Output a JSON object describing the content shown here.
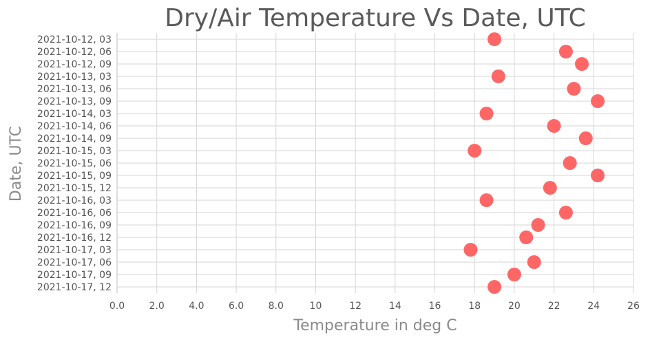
{
  "chart_data": {
    "type": "scatter",
    "title": "Dry/Air Temperature Vs Date, UTC",
    "xlabel": "Temperature in deg C",
    "ylabel": "Date, UTC",
    "xlim": [
      0,
      26
    ],
    "x_ticks": [
      "0.0",
      "2.0",
      "4.0",
      "6.0",
      "8.0",
      "10",
      "12",
      "14",
      "16",
      "18",
      "20",
      "22",
      "24",
      "26"
    ],
    "grid": true,
    "marker_color": "#ff5a5a",
    "categories": [
      "2021-10-12, 03",
      "2021-10-12, 06",
      "2021-10-12, 09",
      "2021-10-13, 03",
      "2021-10-13, 06",
      "2021-10-13, 09",
      "2021-10-14, 03",
      "2021-10-14, 06",
      "2021-10-14, 09",
      "2021-10-15, 03",
      "2021-10-15, 06",
      "2021-10-15, 09",
      "2021-10-15, 12",
      "2021-10-16, 03",
      "2021-10-16, 06",
      "2021-10-16, 09",
      "2021-10-16, 12",
      "2021-10-17, 03",
      "2021-10-17, 06",
      "2021-10-17, 09",
      "2021-10-17, 12"
    ],
    "values": [
      19.0,
      22.6,
      23.4,
      19.2,
      23.0,
      24.2,
      18.6,
      22.0,
      23.6,
      18.0,
      22.8,
      24.2,
      21.8,
      18.6,
      22.6,
      21.2,
      20.6,
      17.8,
      21.0,
      20.0,
      19.0
    ]
  }
}
